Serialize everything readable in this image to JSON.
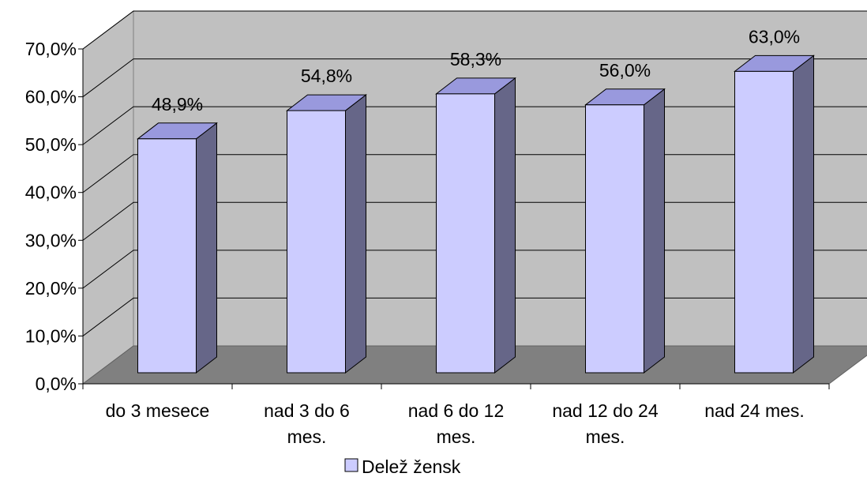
{
  "chart_data": {
    "type": "bar",
    "categories": [
      "do 3 mesece",
      "nad 3 do 6 mes.",
      "nad 6 do 12 mes.",
      "nad 12 do 24 mes.",
      "nad 24 mes."
    ],
    "category_lines": [
      [
        "do 3 mesece"
      ],
      [
        "nad 3 do 6",
        "mes."
      ],
      [
        "nad 6 do 12",
        "mes."
      ],
      [
        "nad 12 do 24",
        "mes."
      ],
      [
        "nad 24 mes."
      ]
    ],
    "series": [
      {
        "name": "Delež žensk",
        "values": [
          48.9,
          54.8,
          58.3,
          56.0,
          63.0
        ]
      }
    ],
    "value_labels": [
      "48,9%",
      "54,8%",
      "58,3%",
      "56,0%",
      "63,0%"
    ],
    "y_ticks": [
      "0,0%",
      "10,0%",
      "20,0%",
      "30,0%",
      "40,0%",
      "50,0%",
      "60,0%",
      "70,0%"
    ],
    "ylim": [
      0,
      70
    ],
    "grid": true,
    "three_d": true,
    "legend_position": "bottom",
    "colors": {
      "bar_front": "#ccccff",
      "bar_top": "#9999dd",
      "bar_side": "#666688",
      "wall": "#c0c0c0",
      "floor": "#808080",
      "gridline": "#000000"
    }
  }
}
